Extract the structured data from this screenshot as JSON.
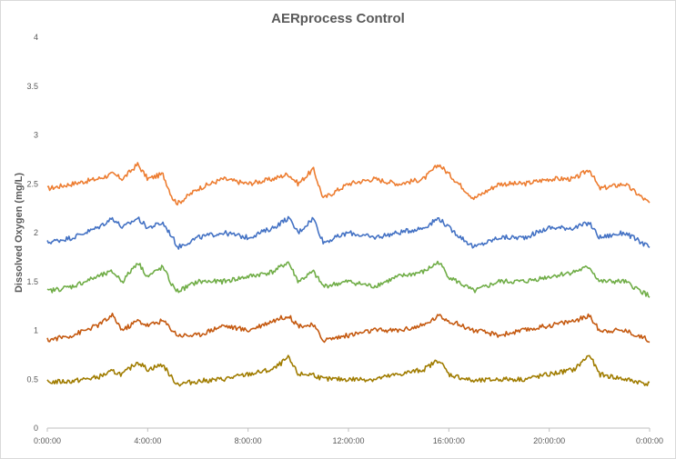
{
  "chart_data": {
    "type": "line",
    "title": "AERprocess Control",
    "xlabel": "",
    "ylabel": "Dissolved Oxygen (mg/L)",
    "ylim": [
      0,
      4
    ],
    "yticks": [
      "0",
      "0.5",
      "1",
      "1.5",
      "2",
      "2.5",
      "3",
      "3.5",
      "4"
    ],
    "xlim_hours": [
      0,
      24
    ],
    "xticks": [
      "0:00:00",
      "4:00:00",
      "8:00:00",
      "12:00:00",
      "16:00:00",
      "20:00:00",
      "0:00:00"
    ],
    "grid": false,
    "legend": "none",
    "x_hours": [
      0,
      1,
      2,
      2.6,
      3,
      3.6,
      4,
      4.6,
      5,
      5.2,
      6,
      7,
      8,
      9,
      9.6,
      10,
      10.6,
      11,
      12,
      13,
      14,
      15,
      15.6,
      16,
      17,
      18,
      19,
      20,
      21,
      21.6,
      22,
      23,
      24
    ],
    "series": [
      {
        "color": "#ed7d31",
        "values": [
          2.45,
          2.5,
          2.55,
          2.6,
          2.55,
          2.7,
          2.55,
          2.6,
          2.35,
          2.3,
          2.45,
          2.55,
          2.5,
          2.55,
          2.6,
          2.5,
          2.65,
          2.35,
          2.5,
          2.55,
          2.5,
          2.55,
          2.7,
          2.6,
          2.35,
          2.5,
          2.5,
          2.55,
          2.55,
          2.65,
          2.45,
          2.5,
          2.3
        ]
      },
      {
        "color": "#4472c4",
        "values": [
          1.9,
          1.95,
          2.05,
          2.15,
          2.05,
          2.15,
          2.05,
          2.1,
          1.95,
          1.85,
          1.95,
          2.0,
          1.95,
          2.05,
          2.15,
          2.0,
          2.15,
          1.9,
          2.0,
          1.95,
          2.0,
          2.05,
          2.15,
          2.05,
          1.85,
          1.95,
          1.95,
          2.05,
          2.05,
          2.1,
          1.95,
          2.0,
          1.85
        ]
      },
      {
        "color": "#70ad47",
        "values": [
          1.4,
          1.45,
          1.55,
          1.6,
          1.5,
          1.7,
          1.55,
          1.65,
          1.45,
          1.4,
          1.5,
          1.5,
          1.55,
          1.6,
          1.7,
          1.5,
          1.6,
          1.45,
          1.5,
          1.45,
          1.55,
          1.6,
          1.7,
          1.55,
          1.4,
          1.5,
          1.5,
          1.55,
          1.6,
          1.65,
          1.5,
          1.5,
          1.35
        ]
      },
      {
        "color": "#c55a11",
        "values": [
          0.9,
          0.95,
          1.05,
          1.15,
          1.0,
          1.1,
          1.05,
          1.1,
          1.0,
          0.95,
          0.95,
          1.05,
          1.0,
          1.1,
          1.15,
          1.05,
          1.05,
          0.9,
          0.95,
          1.0,
          1.0,
          1.05,
          1.15,
          1.1,
          1.0,
          0.95,
          1.0,
          1.05,
          1.1,
          1.15,
          1.0,
          1.0,
          0.9
        ]
      },
      {
        "color": "#a07c00",
        "values": [
          0.47,
          0.48,
          0.52,
          0.58,
          0.55,
          0.68,
          0.6,
          0.65,
          0.5,
          0.45,
          0.48,
          0.5,
          0.55,
          0.6,
          0.72,
          0.55,
          0.55,
          0.5,
          0.5,
          0.5,
          0.55,
          0.6,
          0.7,
          0.55,
          0.48,
          0.5,
          0.5,
          0.55,
          0.6,
          0.75,
          0.55,
          0.5,
          0.45
        ]
      }
    ]
  }
}
